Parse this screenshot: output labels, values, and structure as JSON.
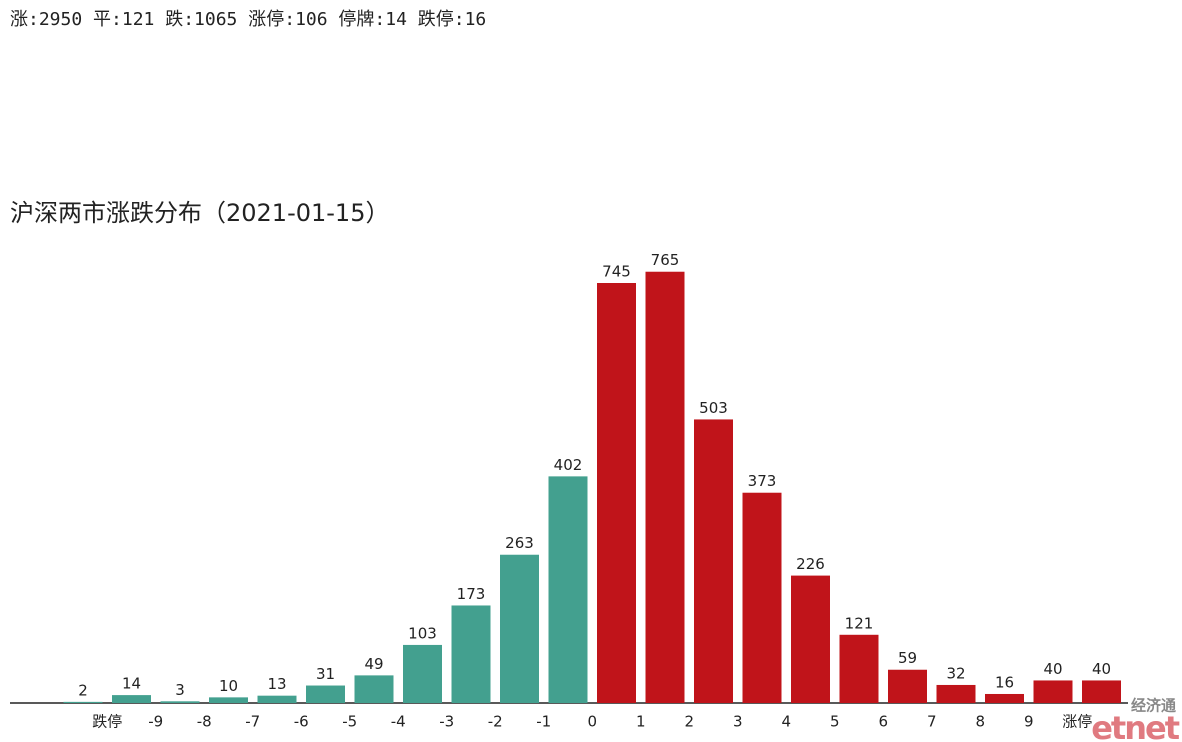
{
  "chart_data": {
    "type": "bar",
    "summary": "涨:2950 平:121 跌:1065 涨停:106 停牌:14 跌停:16",
    "title": "沪深两市涨跌分布（2021-01-15）",
    "categories": [
      null,
      null,
      null,
      null,
      null,
      null,
      null,
      null,
      null,
      null,
      null,
      null,
      null,
      null,
      null,
      null,
      null,
      null,
      null,
      null,
      null,
      null
    ],
    "values": [
      2,
      14,
      3,
      10,
      13,
      31,
      49,
      103,
      173,
      263,
      402,
      745,
      765,
      503,
      373,
      226,
      121,
      59,
      32,
      16,
      40,
      40
    ],
    "colors": [
      "#43a08f",
      "#43a08f",
      "#43a08f",
      "#43a08f",
      "#43a08f",
      "#43a08f",
      "#43a08f",
      "#43a08f",
      "#43a08f",
      "#43a08f",
      "#43a08f",
      "#c0141a",
      "#c0141a",
      "#c0141a",
      "#c0141a",
      "#c0141a",
      "#c0141a",
      "#c0141a",
      "#c0141a",
      "#c0141a",
      "#c0141a",
      "#c0141a"
    ],
    "boundary_labels": [
      "跌停",
      "-9",
      "-8",
      "-7",
      "-6",
      "-5",
      "-4",
      "-3",
      "-2",
      "-1",
      "0",
      "1",
      "2",
      "3",
      "4",
      "5",
      "6",
      "7",
      "8",
      "9",
      "涨停"
    ],
    "ylim": [
      0,
      800
    ],
    "watermark": [
      "经济通",
      "etnet"
    ]
  }
}
